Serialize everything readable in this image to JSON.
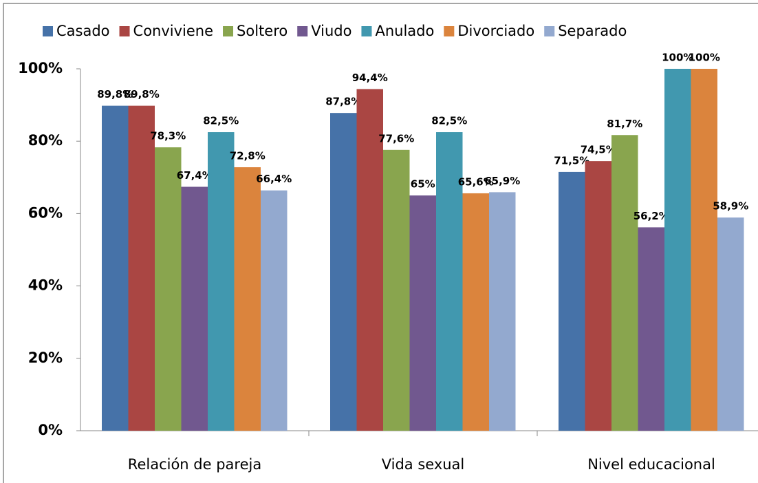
{
  "chart_data": {
    "type": "bar",
    "categories": [
      "Relación de pareja",
      "Vida sexual",
      "Nivel educacional"
    ],
    "series": [
      {
        "name": "Casado",
        "color": "#4672a8",
        "values": [
          89.8,
          87.8,
          71.5
        ],
        "value_labels": [
          "89,8%",
          "87,8%",
          "71,5%"
        ]
      },
      {
        "name": "Conviviene",
        "color": "#aa4643",
        "values": [
          89.8,
          94.4,
          74.5
        ],
        "value_labels": [
          "89,8%",
          "94,4%",
          "74,5%"
        ]
      },
      {
        "name": "Soltero",
        "color": "#89a54e",
        "values": [
          78.3,
          77.6,
          81.7
        ],
        "value_labels": [
          "78,3%",
          "77,6%",
          "81,7%"
        ]
      },
      {
        "name": "Viudo",
        "color": "#71588f",
        "values": [
          67.4,
          65,
          56.2
        ],
        "value_labels": [
          "67,4%",
          "65%",
          "56,2%"
        ]
      },
      {
        "name": "Anulado",
        "color": "#4198af",
        "values": [
          82.5,
          82.5,
          100
        ],
        "value_labels": [
          "82,5%",
          "82,5%",
          "100%"
        ]
      },
      {
        "name": "Divorciado",
        "color": "#db843d",
        "values": [
          72.8,
          65.6,
          100
        ],
        "value_labels": [
          "72,8%",
          "65,6%",
          "100%"
        ]
      },
      {
        "name": "Separado",
        "color": "#93a9cf",
        "values": [
          66.4,
          65.9,
          58.9
        ],
        "value_labels": [
          "66,4%",
          "65,9%",
          "58,9%"
        ]
      }
    ],
    "ylim": [
      0,
      100
    ],
    "yticks": [
      {
        "value": 0,
        "label": "0%"
      },
      {
        "value": 20,
        "label": "20%"
      },
      {
        "value": 40,
        "label": "40%"
      },
      {
        "value": 60,
        "label": "60%"
      },
      {
        "value": 80,
        "label": "80%"
      },
      {
        "value": 100,
        "label": "100%"
      }
    ],
    "legend": "top"
  }
}
